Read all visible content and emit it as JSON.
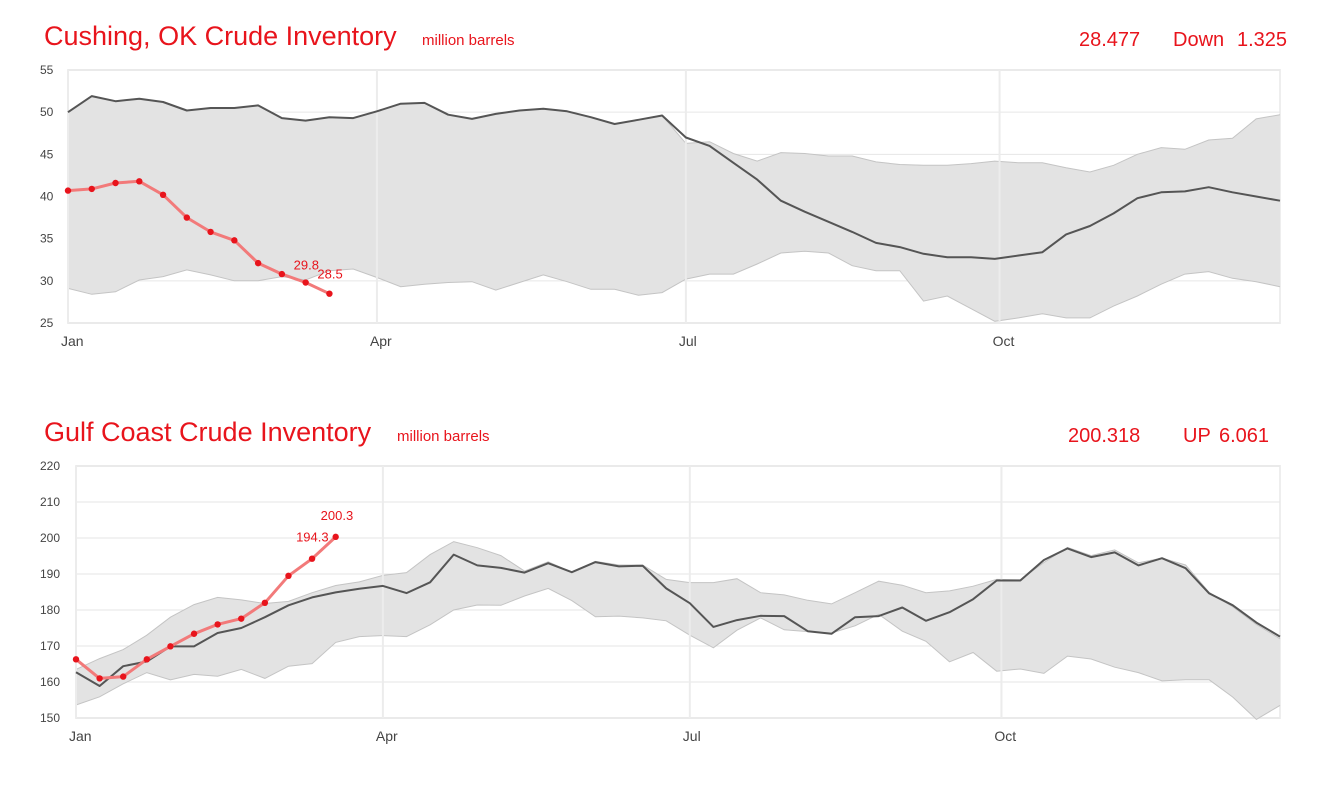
{
  "colors": {
    "accent": "#e8141c",
    "line": "#555555",
    "band": "#e3e3e3",
    "current": "#f27a7a",
    "point": "#e8141c"
  },
  "chart_data": [
    {
      "type": "line",
      "title": "Cushing, OK Crude Inventory",
      "unit_label": "million barrels",
      "latest_value": "28.477",
      "change_label": "Down",
      "change_value": "1.325",
      "grid": true,
      "ylim": [
        25,
        55
      ],
      "y_ticks": [
        "25",
        "30",
        "35",
        "40",
        "45",
        "50",
        "55"
      ],
      "x_ticks": [
        {
          "label": "Jan",
          "week": 0
        },
        {
          "label": "Apr",
          "week": 13
        },
        {
          "label": "Jul",
          "week": 26
        },
        {
          "label": "Oct",
          "week": 39.2
        }
      ],
      "weeks": [
        0,
        1,
        2,
        3,
        4,
        5,
        6,
        7,
        8,
        9,
        10,
        11,
        12,
        13,
        14,
        15,
        16,
        17,
        18,
        19,
        20,
        21,
        22,
        23,
        24,
        25,
        26,
        27,
        28,
        29,
        30,
        31,
        32,
        33,
        34,
        35,
        36,
        37,
        38,
        39,
        40,
        41,
        42,
        43,
        44,
        45,
        46,
        47,
        48,
        49,
        50,
        51
      ],
      "band_max": [
        50.0,
        51.9,
        51.3,
        51.6,
        51.2,
        50.2,
        50.5,
        50.5,
        50.8,
        49.3,
        49.0,
        49.4,
        49.3,
        50.1,
        51.0,
        51.1,
        49.7,
        49.2,
        49.8,
        50.2,
        50.4,
        50.1,
        49.4,
        48.6,
        49.1,
        49.6,
        46.3,
        46.5,
        45.1,
        44.2,
        45.2,
        45.1,
        44.8,
        44.8,
        44.1,
        43.8,
        43.7,
        43.7,
        43.9,
        44.2,
        44.0,
        44.0,
        43.4,
        42.9,
        43.7,
        45.0,
        45.8,
        45.6,
        46.7,
        46.9,
        49.2,
        49.7
      ],
      "band_min": [
        29.1,
        28.4,
        28.7,
        30.1,
        30.5,
        31.3,
        30.7,
        30.0,
        30.0,
        30.5,
        30.1,
        31.2,
        31.4,
        30.4,
        29.3,
        29.6,
        29.8,
        29.9,
        28.9,
        29.8,
        30.7,
        29.9,
        29.0,
        29.0,
        28.3,
        28.6,
        30.2,
        30.8,
        30.8,
        32.0,
        33.3,
        33.5,
        33.3,
        31.8,
        31.2,
        31.2,
        27.6,
        28.2,
        26.7,
        25.2,
        25.6,
        26.1,
        25.6,
        25.6,
        27.0,
        28.2,
        29.6,
        30.8,
        31.1,
        30.3,
        29.9,
        29.3
      ],
      "series": [
        {
          "name": "",
          "values": [
            50.0,
            51.9,
            51.3,
            51.6,
            51.2,
            50.2,
            50.5,
            50.5,
            50.8,
            49.3,
            49.0,
            49.4,
            49.3,
            50.1,
            51.0,
            51.1,
            49.7,
            49.2,
            49.8,
            50.2,
            50.4,
            50.1,
            49.4,
            48.6,
            49.1,
            49.6,
            47.0,
            46.0,
            44.0,
            42.0,
            39.5,
            38.2,
            37.0,
            35.8,
            34.5,
            34.0,
            33.2,
            32.8,
            32.8,
            32.6,
            33.0,
            33.4,
            35.5,
            36.5,
            38.0,
            39.8,
            40.5,
            40.6,
            41.1,
            40.5,
            40.0,
            39.5
          ]
        },
        {
          "name": "",
          "weeks": [
            0,
            1,
            2,
            3,
            4,
            5,
            6,
            7,
            8,
            9,
            10,
            11
          ],
          "values": [
            40.7,
            40.9,
            41.6,
            41.8,
            40.2,
            37.5,
            35.8,
            34.8,
            32.1,
            30.8,
            29.8,
            28.477
          ]
        }
      ],
      "annotations": [
        {
          "text": "29.8",
          "week": 10,
          "value": 29.8
        },
        {
          "text": "28.5",
          "week": 11,
          "value": 28.477
        }
      ]
    },
    {
      "type": "line",
      "title": "Gulf Coast Crude Inventory",
      "unit_label": "million barrels",
      "latest_value": "200.318",
      "change_label": "UP",
      "change_value": "6.061",
      "grid": true,
      "ylim": [
        150,
        220
      ],
      "y_ticks": [
        "150",
        "160",
        "170",
        "180",
        "190",
        "200",
        "210",
        "220"
      ],
      "x_ticks": [
        {
          "label": "Jan",
          "week": 0
        },
        {
          "label": "Apr",
          "week": 13
        },
        {
          "label": "Jul",
          "week": 26
        },
        {
          "label": "Oct",
          "week": 39.2
        }
      ],
      "weeks": [
        0,
        1,
        2,
        3,
        4,
        5,
        6,
        7,
        8,
        9,
        10,
        11,
        12,
        13,
        14,
        15,
        16,
        17,
        18,
        19,
        20,
        21,
        22,
        23,
        24,
        25,
        26,
        27,
        28,
        29,
        30,
        31,
        32,
        33,
        34,
        35,
        36,
        37,
        38,
        39,
        40,
        41,
        42,
        43,
        44,
        45,
        46,
        47,
        48,
        49,
        50,
        51
      ],
      "band_max": [
        163.5,
        166.5,
        169.0,
        173.0,
        178.0,
        181.5,
        183.5,
        182.8,
        181.8,
        182.4,
        184.8,
        186.8,
        187.8,
        189.6,
        190.4,
        195.4,
        199.0,
        197.3,
        195.1,
        190.8,
        193.4,
        190.5,
        193.5,
        192.5,
        192.5,
        188.5,
        187.6,
        187.6,
        188.7,
        184.8,
        184.2,
        182.7,
        181.7,
        184.8,
        188.0,
        186.9,
        184.8,
        185.3,
        186.6,
        188.5,
        188.4,
        193.2,
        197.4,
        195.1,
        196.7,
        193.1,
        194.4,
        192.5,
        184.9,
        180.9,
        176.0,
        172.0
      ],
      "band_min": [
        153.6,
        155.9,
        159.5,
        162.6,
        160.6,
        162.1,
        161.6,
        163.5,
        161.0,
        164.4,
        165.1,
        171.0,
        172.6,
        172.9,
        172.6,
        175.9,
        180.0,
        181.4,
        181.3,
        183.9,
        186.0,
        182.6,
        178.1,
        178.3,
        177.8,
        177.0,
        173.0,
        169.5,
        174.4,
        177.8,
        174.5,
        174.0,
        173.6,
        175.6,
        178.8,
        174.1,
        171.3,
        165.6,
        168.2,
        163.0,
        163.6,
        162.4,
        167.2,
        166.4,
        164.1,
        162.6,
        160.3,
        160.6,
        160.6,
        155.8,
        149.6,
        153.5
      ],
      "series": [
        {
          "name": "",
          "values": [
            162.7,
            158.9,
            164.4,
            165.7,
            169.9,
            169.9,
            173.6,
            175.0,
            178.0,
            181.3,
            183.5,
            184.9,
            185.9,
            186.7,
            184.7,
            187.7,
            195.4,
            192.4,
            191.7,
            190.4,
            193.0,
            190.5,
            193.3,
            192.1,
            192.3,
            186.0,
            181.9,
            175.3,
            177.2,
            178.4,
            178.3,
            174.1,
            173.4,
            178.0,
            178.3,
            180.7,
            177.0,
            179.4,
            183.0,
            188.2,
            188.2,
            193.9,
            197.1,
            194.7,
            196.0,
            192.4,
            194.4,
            191.6,
            184.6,
            181.3,
            176.5,
            172.6
          ]
        },
        {
          "name": "",
          "weeks": [
            0,
            1,
            2,
            3,
            4,
            5,
            6,
            7,
            8,
            9,
            10,
            11
          ],
          "values": [
            166.3,
            161.0,
            161.5,
            166.3,
            169.9,
            173.4,
            176.0,
            177.6,
            182.0,
            189.5,
            194.257,
            200.318
          ]
        }
      ],
      "annotations": [
        {
          "text": "194.3",
          "week": 10,
          "value": 194.257
        },
        {
          "text": "200.3",
          "week": 11,
          "value": 200.318
        }
      ]
    }
  ]
}
